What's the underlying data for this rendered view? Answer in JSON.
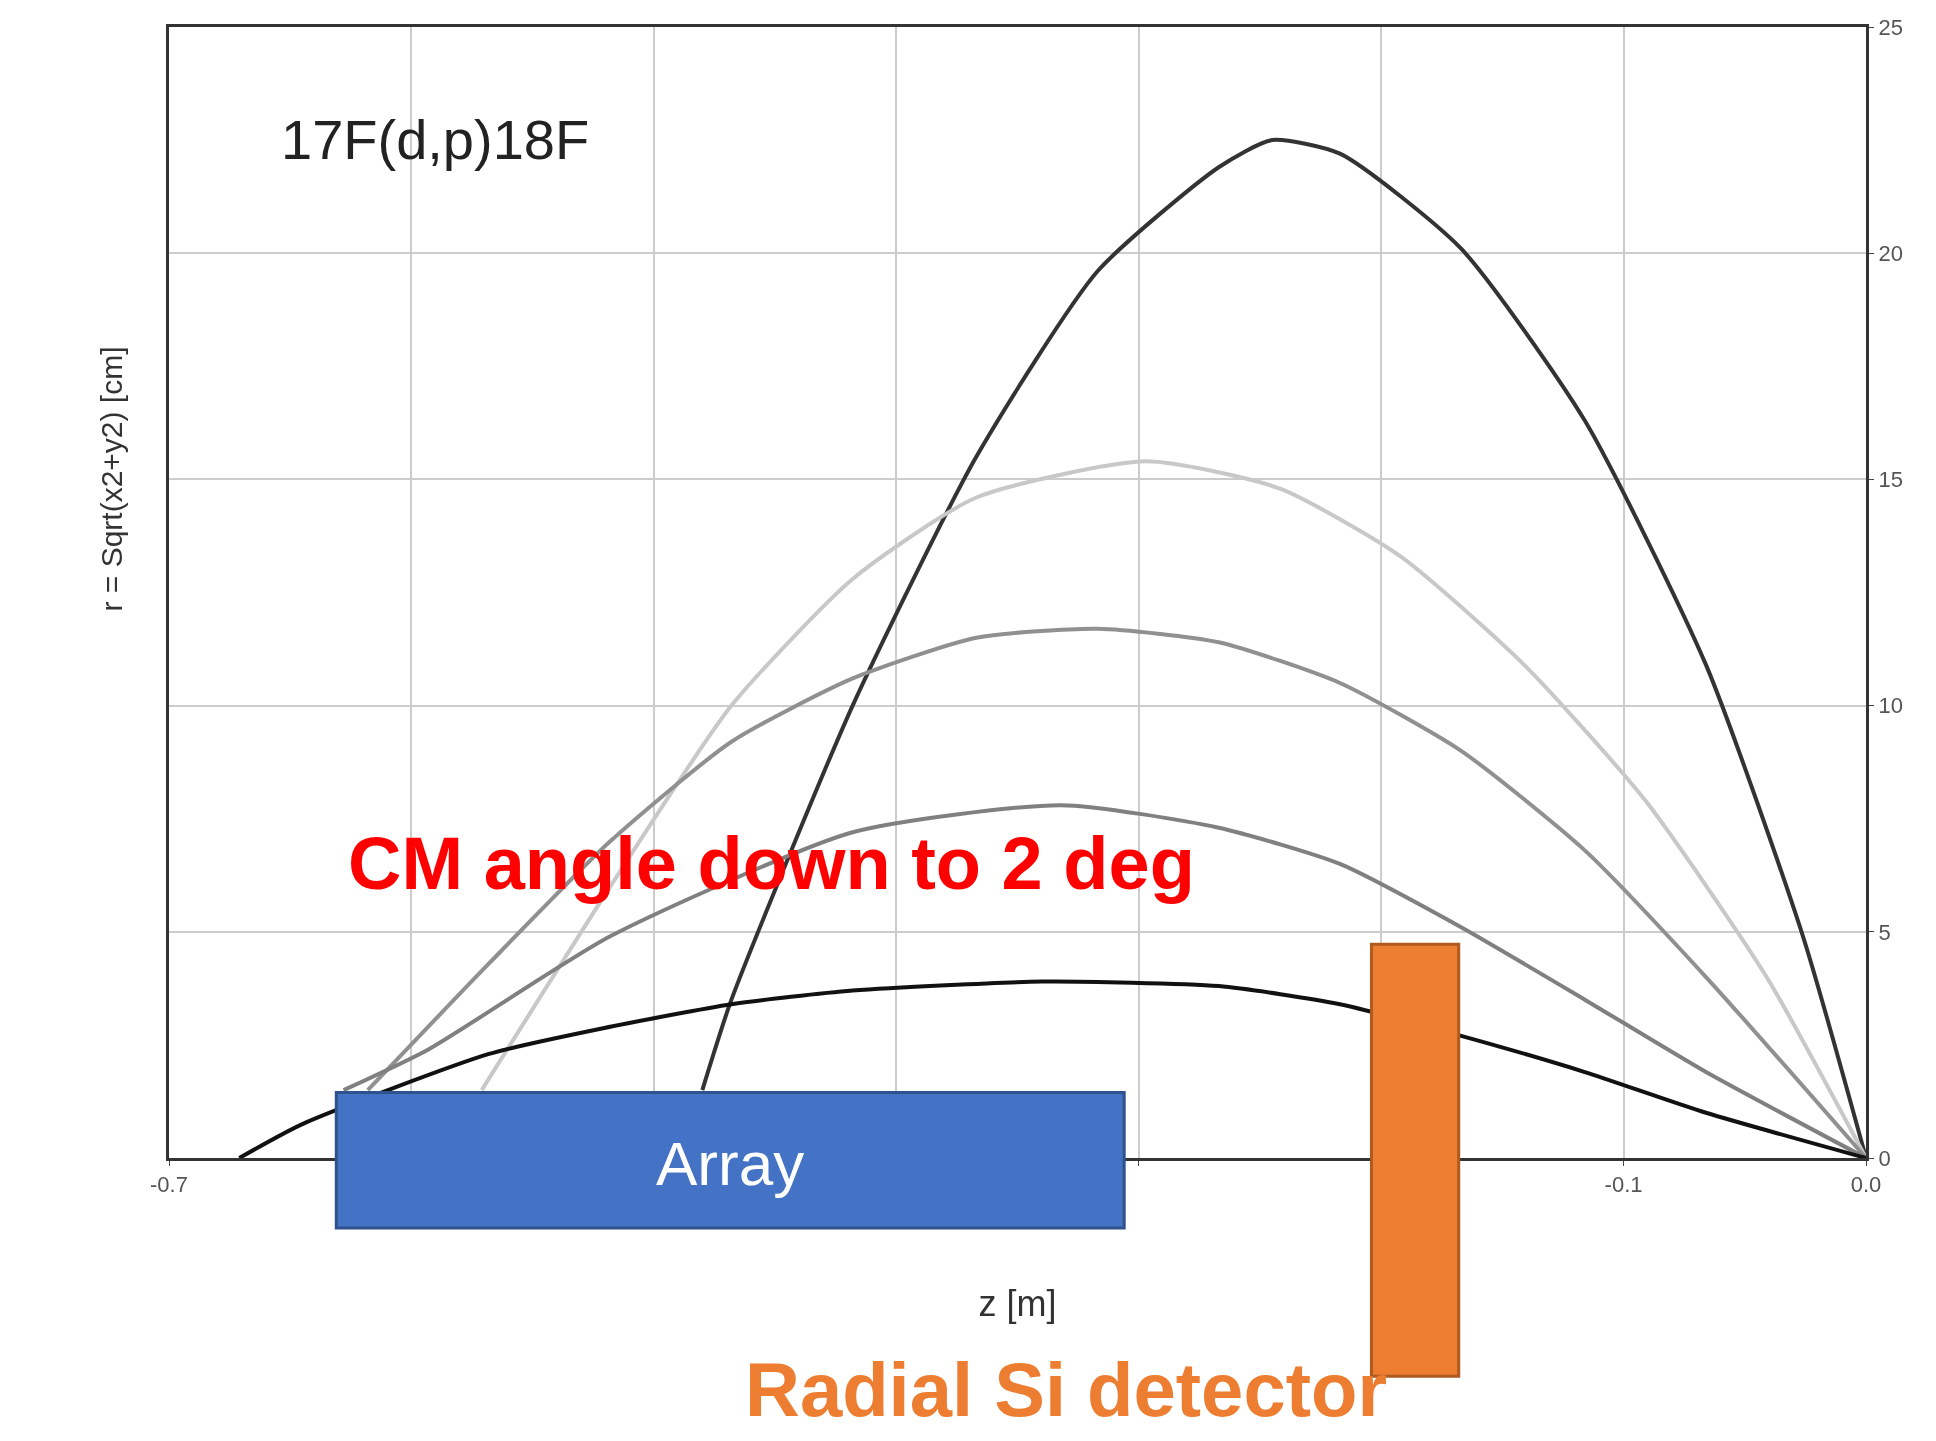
{
  "chart_data": {
    "type": "line",
    "title": "17F(d,p)18F",
    "xlabel": "z [m]",
    "ylabel": "r = Sqrt(x2+y2) [cm]",
    "annotations": [
      "CM angle down to 2 deg"
    ],
    "series": [
      {
        "color": "#333333",
        "x": [
          -0.48,
          -0.468,
          -0.418,
          -0.367,
          -0.317,
          -0.267,
          -0.245,
          -0.217,
          -0.167,
          -0.116,
          -0.066,
          -0.026,
          0.0
        ],
        "values": [
          1.5,
          3.5,
          10.0,
          15.5,
          19.6,
          21.9,
          22.5,
          22.2,
          20.1,
          16.3,
          10.9,
          4.9,
          0
        ]
      },
      {
        "color": "#c8c8c8",
        "x": [
          -0.571,
          -0.518,
          -0.468,
          -0.418,
          -0.367,
          -0.297,
          -0.242,
          -0.192,
          -0.141,
          -0.091,
          -0.041,
          0.0
        ],
        "values": [
          1.5,
          6.0,
          10.0,
          12.8,
          14.6,
          15.4,
          14.8,
          13.3,
          10.9,
          7.9,
          4.0,
          0
        ]
      },
      {
        "color": "#909090",
        "x": [
          -0.618,
          -0.568,
          -0.518,
          -0.468,
          -0.418,
          -0.367,
          -0.317,
          -0.267,
          -0.217,
          -0.167,
          -0.116,
          -0.066,
          0.0
        ],
        "values": [
          1.5,
          4.3,
          7.0,
          9.2,
          10.6,
          11.5,
          11.7,
          11.4,
          10.5,
          9.0,
          6.8,
          4.0,
          0
        ]
      },
      {
        "color": "#808080",
        "x": [
          -0.628,
          -0.593,
          -0.518,
          -0.418,
          -0.332,
          -0.267,
          -0.217,
          -0.167,
          -0.116,
          -0.066,
          0.0
        ],
        "values": [
          1.5,
          2.4,
          4.9,
          7.2,
          7.8,
          7.3,
          6.5,
          5.1,
          3.5,
          1.9,
          0
        ]
      },
      {
        "color": "#111111",
        "x": [
          -0.671,
          -0.645,
          -0.568,
          -0.518,
          -0.468,
          -0.418,
          -0.34,
          -0.267,
          -0.217,
          -0.167,
          -0.116,
          -0.066,
          0.0
        ],
        "values": [
          0,
          0.75,
          2.3,
          2.9,
          3.4,
          3.7,
          3.9,
          3.8,
          3.4,
          2.7,
          1.9,
          1.0,
          0
        ]
      }
    ],
    "xlim": [
      -0.7,
      0.0
    ],
    "xticks": [
      -0.7,
      {
        "value": -0.6,
        "label": null
      },
      {
        "value": -0.5,
        "label": null
      },
      {
        "value": -0.4,
        "label": null
      },
      {
        "value": -0.3,
        "label": null
      },
      {
        "value": -0.2,
        "label": null
      },
      -0.1,
      {
        "value": 0.0,
        "label": "0.0"
      }
    ],
    "ylim": [
      0,
      25
    ],
    "yticks": [
      0,
      5,
      10,
      15,
      20,
      25
    ],
    "bands": [
      {
        "axis": "x",
        "from": -0.631,
        "to": -0.306,
        "label": "Array",
        "color": "#4472c4"
      },
      {
        "axis": "x",
        "from": -0.204,
        "to": -0.168,
        "label": "Radial Si detector",
        "color": "#ed7d31"
      }
    ],
    "grid": true,
    "marker": "none",
    "line_style": "solid"
  }
}
